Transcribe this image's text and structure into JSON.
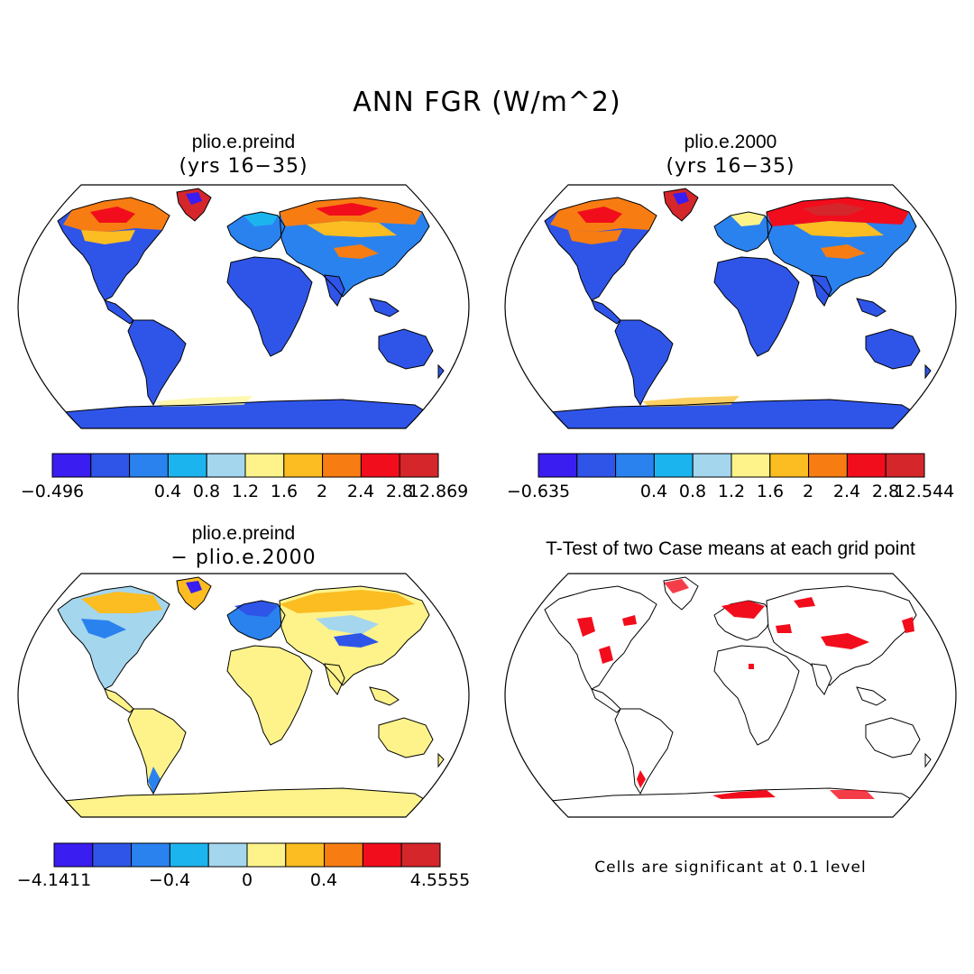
{
  "title": "ANN FGR (W/m^2)",
  "colors": {
    "scale": [
      "#3a1df0",
      "#2f55e8",
      "#2a82ef",
      "#1cb4ee",
      "#a4d6ee",
      "#fdf38a",
      "#fbbd21",
      "#f77d13",
      "#f20d1c",
      "#d5262b"
    ],
    "land_outline": "#000000",
    "significant_cell": "#f20d1c"
  },
  "panels": [
    {
      "id": "preind",
      "title": "plio.e.preind",
      "subtitle": "(yrs 16−35)",
      "colorbar": {
        "labels": [
          "−0.496",
          "0.4",
          "0.8",
          "1.2",
          "1.6",
          "2",
          "2.4",
          "2.8",
          "12.869"
        ]
      }
    },
    {
      "id": "y2000",
      "title": "plio.e.2000",
      "subtitle": "(yrs 16−35)",
      "colorbar": {
        "labels": [
          "−0.635",
          "0.4",
          "0.8",
          "1.2",
          "1.6",
          "2",
          "2.4",
          "2.8",
          "12.544"
        ]
      }
    },
    {
      "id": "diff",
      "title": "plio.e.preind",
      "subtitle": "− plio.e.2000",
      "colorbar": {
        "labels": [
          "−4.1411",
          "−0.4",
          "0",
          "0.4",
          "4.5555"
        ]
      }
    },
    {
      "id": "ttest",
      "title": "T-Test of two Case means at each grid point",
      "note": "Cells are significant at 0.1 level"
    }
  ]
}
